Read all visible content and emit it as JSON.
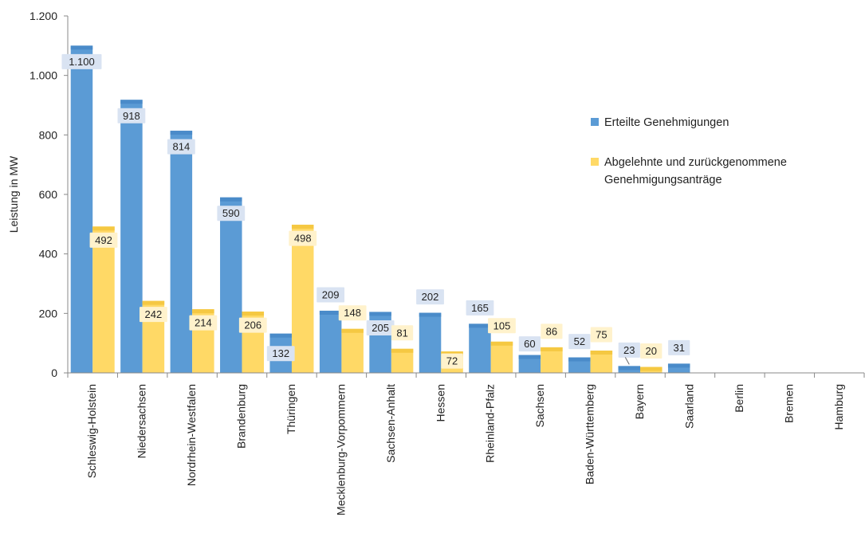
{
  "chart_data": {
    "type": "bar",
    "ylabel": "Leistung in MW",
    "xlabel": "",
    "ylim": [
      0,
      1200
    ],
    "y_ticks": [
      0,
      200,
      400,
      600,
      800,
      1000,
      1200
    ],
    "y_tick_labels": [
      "0",
      "200",
      "400",
      "600",
      "800",
      "1.000",
      "1.200"
    ],
    "grid": false,
    "legend_position": "right",
    "categories": [
      "Schleswig-Holstein",
      "Niedersachsen",
      "Nordrhein-Westfalen",
      "Brandenburg",
      "Thüringen",
      "Mecklenburg-Vorpommern",
      "Sachsen-Anhalt",
      "Hessen",
      "Rheinland-Pfalz",
      "Sachsen",
      "Baden-Württemberg",
      "Bayern",
      "Saarland",
      "Berlin",
      "Bremen",
      "Hamburg"
    ],
    "series": [
      {
        "name": "Erteilte Genehmigungen",
        "color": "#5B9BD5",
        "values": [
          1100,
          918,
          814,
          590,
          132,
          209,
          205,
          202,
          165,
          60,
          52,
          23,
          31,
          0,
          0,
          0
        ],
        "labels": [
          "1.100",
          "918",
          "814",
          "590",
          "132",
          "209",
          "205",
          "202",
          "165",
          "60",
          "52",
          "23",
          "31",
          null,
          null,
          null
        ]
      },
      {
        "name": "Abgelehnte und zurückgenommene Genehmigungsanträge",
        "name_lines": [
          "Abgelehnte und zurückgenommene",
          "Genehmigungsanträge"
        ],
        "color": "#FFD966",
        "values": [
          492,
          242,
          214,
          206,
          498,
          148,
          81,
          72,
          105,
          86,
          75,
          20,
          0,
          0,
          0,
          0
        ],
        "labels": [
          "492",
          "242",
          "214",
          "206",
          "498",
          "148",
          "81",
          "72",
          "105",
          "86",
          "75",
          "20",
          null,
          null,
          null,
          null
        ]
      }
    ]
  }
}
